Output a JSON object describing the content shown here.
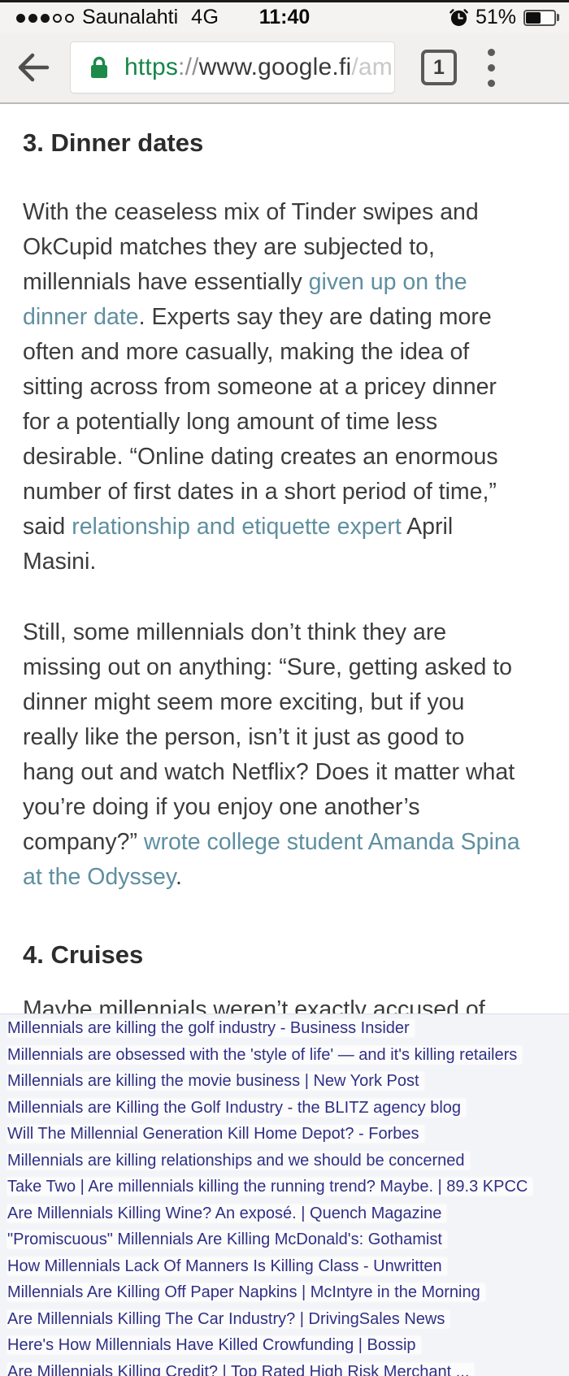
{
  "colors": {
    "link_teal": "#5f8fa0",
    "visited_purple": "#303085",
    "url_green": "#17854a"
  },
  "status_bar": {
    "carrier": "Saunalahti",
    "network": "4G",
    "time": "11:40",
    "battery_percent": "51%",
    "signal": {
      "filled": 3,
      "total": 5
    }
  },
  "toolbar": {
    "url": {
      "scheme": "https",
      "separator": "://",
      "host_path": "www.google.fi",
      "faded": "/am"
    },
    "tab_count": "1"
  },
  "article": {
    "heading_3": "3. Dinner dates",
    "paragraph_1_lines": [
      [
        {
          "text": "With the ceaseless mix of Tinder swipes and"
        }
      ],
      [
        {
          "text": "OkCupid matches they are subjected to,"
        }
      ],
      [
        {
          "text": "millennials have essentially "
        },
        {
          "text": "given up on the",
          "link": true
        }
      ],
      [
        {
          "text": "dinner date",
          "link": true
        },
        {
          "text": ". Experts say they are dating more"
        }
      ],
      [
        {
          "text": "often and more casually, making the idea of"
        }
      ],
      [
        {
          "text": "sitting across from someone at a pricey dinner"
        }
      ],
      [
        {
          "text": "for a potentially long amount of time less"
        }
      ],
      [
        {
          "text": "desirable. “Online dating creates an enormous"
        }
      ],
      [
        {
          "text": "number of first dates in a short period of time,”"
        }
      ],
      [
        {
          "text": "said "
        },
        {
          "text": "relationship and etiquette expert",
          "link": true
        },
        {
          "text": " April"
        }
      ],
      [
        {
          "text": "Masini."
        }
      ]
    ],
    "paragraph_2_lines": [
      [
        {
          "text": "Still, some millennials don’t think they are"
        }
      ],
      [
        {
          "text": "missing out on anything: “Sure, getting asked to"
        }
      ],
      [
        {
          "text": "dinner might seem more exciting, but if you"
        }
      ],
      [
        {
          "text": "really like the person, isn’t it just as good to"
        }
      ],
      [
        {
          "text": "hang out and watch Netflix? Does it matter what"
        }
      ],
      [
        {
          "text": "you’re doing if you enjoy one another’s"
        }
      ],
      [
        {
          "text": "company?” "
        },
        {
          "text": "wrote college student Amanda Spina",
          "link": true
        }
      ],
      [
        {
          "text": "at the Odyssey",
          "link": true
        },
        {
          "text": "."
        }
      ]
    ],
    "heading_4": "4. Cruises",
    "paragraph_3_lines": [
      [
        {
          "text": "Maybe millennials weren’t exactly accused of"
        }
      ]
    ]
  },
  "search_results": {
    "links": [
      "Millennials are killing the golf industry - Business Insider",
      "Millennials are obsessed with the 'style of life' — and it's killing retailers",
      "Millennials are killing the movie business | New York Post",
      "Millennials are Killing the Golf Industry - the BLITZ agency blog",
      "Will The Millennial Generation Kill Home Depot? - Forbes",
      "Millennials are killing relationships and we should be concerned",
      "Take Two | Are millennials killing the running trend? Maybe. | 89.3 KPCC",
      "Are Millennials Killing Wine? An exposé. | Quench Magazine",
      "\"Promiscuous\" Millennials Are Killing McDonald's: Gothamist",
      "How Millennials Lack Of Manners Is Killing Class - Unwritten",
      "Millennials Are Killing Off Paper Napkins | McIntyre in the Morning",
      "Are Millennials Killing The Car Industry? | DrivingSales News",
      "Here's How Millennials Have Killed Crowfunding | Bossip",
      "Are Millennials Killing Credit? | Top Rated High Risk Merchant ..."
    ]
  }
}
